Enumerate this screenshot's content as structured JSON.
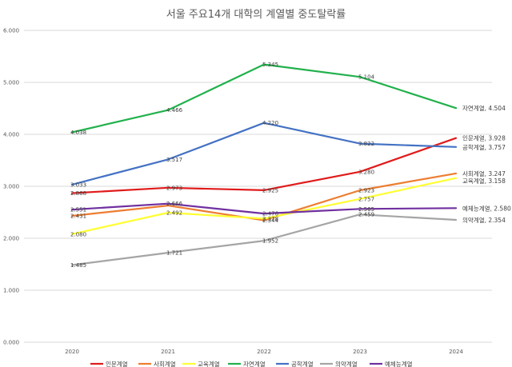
{
  "chart_data": {
    "type": "line",
    "title": "서울 주요14개 대학의 계열별 중도탈락률",
    "x": [
      "2020",
      "2021",
      "2022",
      "2023",
      "2024"
    ],
    "ylim": [
      0,
      6
    ],
    "y_ticks": [
      "0.000",
      "1.000",
      "2.000",
      "3.000",
      "4.000",
      "5.000",
      "6.000"
    ],
    "grid": true,
    "legend_position": "bottom",
    "series": [
      {
        "name": "인문계열",
        "color": "#e01b1b",
        "values": [
          2.868,
          2.973,
          2.925,
          3.28,
          3.928
        ],
        "labels": [
          "2.868",
          "2.973",
          "2.925",
          "3.280",
          "3.928"
        ],
        "end_label": "인문계열, 3.928"
      },
      {
        "name": "사회계열",
        "color": "#ed7d31",
        "values": [
          2.431,
          2.629,
          2.344,
          2.923,
          3.247
        ],
        "labels": [
          "2.431",
          "",
          "2.344",
          "2.923",
          "3.247"
        ],
        "end_label": "사회계열, 3.247"
      },
      {
        "name": "교육계열",
        "color": "#ffff33",
        "values": [
          2.08,
          2.492,
          2.378,
          2.757,
          3.158
        ],
        "labels": [
          "2.080",
          "2.492",
          "2.378",
          "2.757",
          "3.158"
        ],
        "end_label": "교육계열, 3.158"
      },
      {
        "name": "자연계열",
        "color": "#22b14c",
        "values": [
          4.038,
          4.466,
          5.345,
          5.104,
          4.504
        ],
        "labels": [
          "4.038",
          "4.466",
          "5.345",
          "5.104",
          "4.504"
        ],
        "end_label": "자연계열, 4.504"
      },
      {
        "name": "공학계열",
        "color": "#4472c4",
        "values": [
          3.033,
          3.517,
          4.22,
          3.822,
          3.757
        ],
        "labels": [
          "3.033",
          "3.517",
          "4.220",
          "3.822",
          "3.757"
        ],
        "end_label": "공학계열, 3.757"
      },
      {
        "name": "의약계열",
        "color": "#a5a5a5",
        "values": [
          1.485,
          1.721,
          1.952,
          2.459,
          2.354
        ],
        "labels": [
          "1.485",
          "1.721",
          "1.952",
          "2.459",
          "2.354"
        ],
        "end_label": "의약계열, 2.354"
      },
      {
        "name": "예체능계열",
        "color": "#7030a0",
        "values": [
          2.551,
          2.666,
          2.476,
          2.565,
          2.58
        ],
        "labels": [
          "2.551",
          "2.666",
          "2.476",
          "2.565",
          "2.580"
        ],
        "end_label": "예체능계열, 2.580"
      }
    ]
  }
}
